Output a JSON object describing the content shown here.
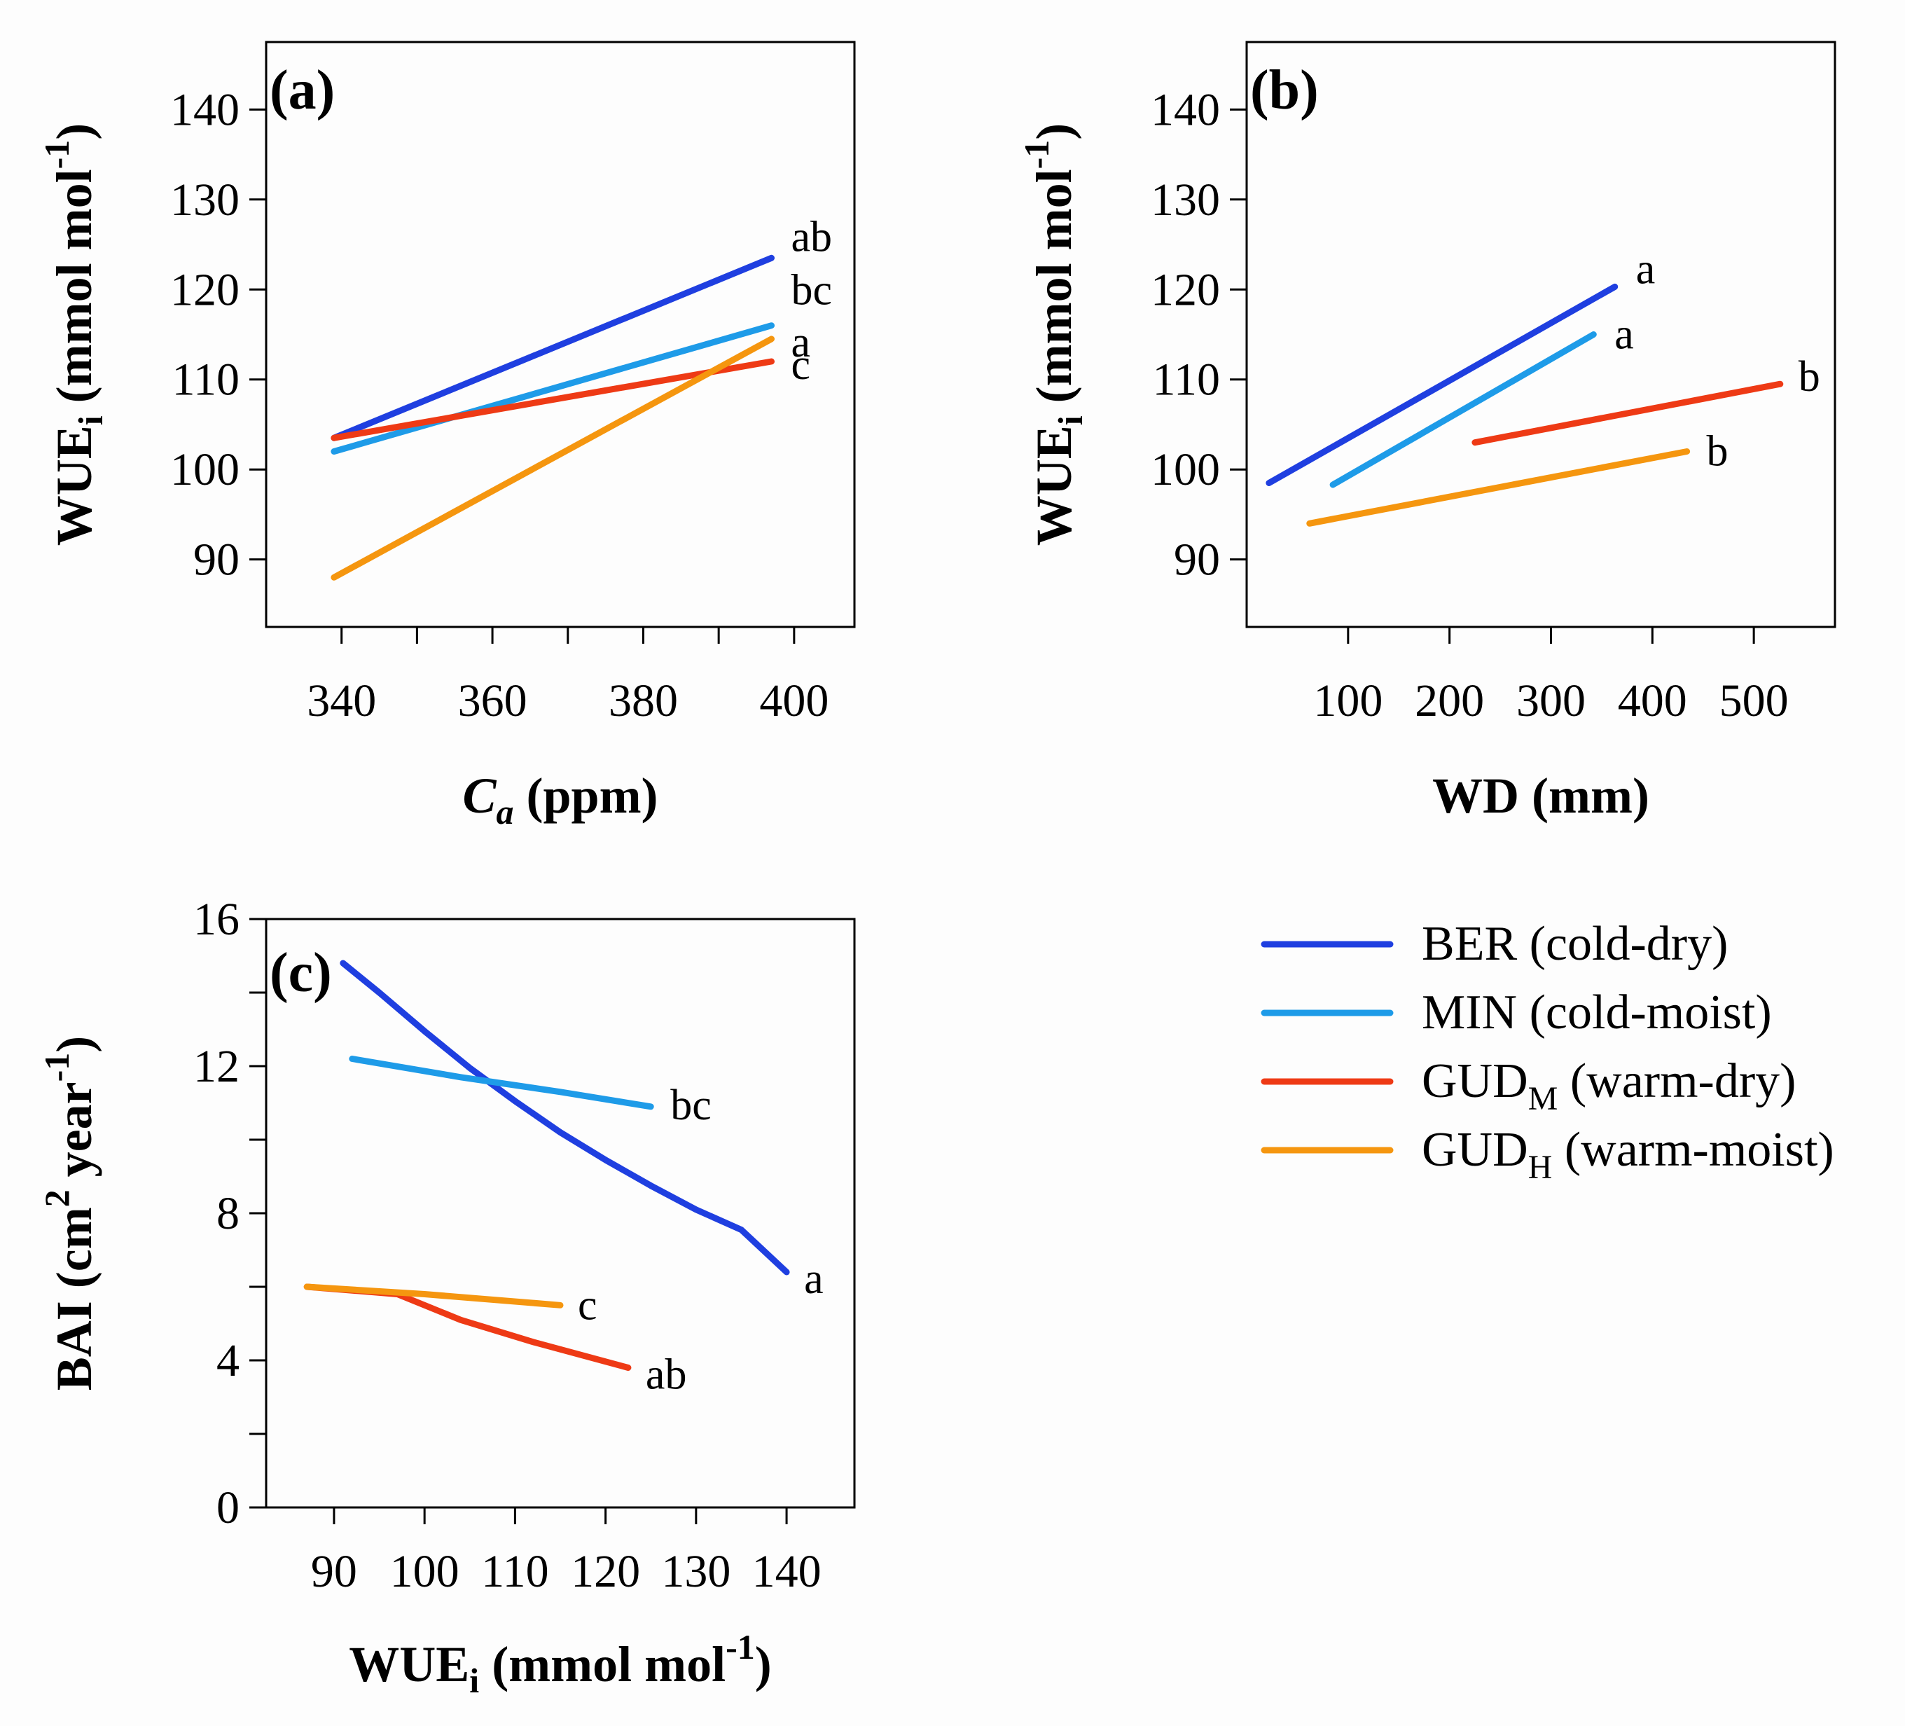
{
  "legend": [
    {
      "name": "BER (cold-dry)",
      "base": "BER",
      "sub": "",
      "rest": " (cold-dry)",
      "color": "#1f3fe0"
    },
    {
      "name": "MIN (cold-moist)",
      "base": "MIN",
      "sub": "",
      "rest": " (cold-moist)",
      "color": "#1e9be8"
    },
    {
      "name": "GUDM (warm-dry)",
      "base": "GUD",
      "sub": "M",
      "rest": " (warm-dry)",
      "color": "#ee3a15"
    },
    {
      "name": "GUDH (warm-moist)",
      "base": "GUD",
      "sub": "H",
      "rest": " (warm-moist)",
      "color": "#f5960f"
    }
  ],
  "chart_data": [
    {
      "panel": "(a)",
      "type": "line",
      "xlabel": {
        "base": "C",
        "sub": "a",
        "rest": " (ppm)"
      },
      "ylabel": {
        "base": "WUE",
        "sub": "i",
        "rest": " (mmol mol",
        "sup": "-1",
        "close": ")"
      },
      "xlim": [
        330,
        408
      ],
      "ylim": [
        82.5,
        147.5
      ],
      "xticks": [
        340,
        360,
        380,
        400
      ],
      "xminor": [
        350,
        370,
        390
      ],
      "yticks": [
        90,
        100,
        110,
        120,
        130,
        140
      ],
      "series": [
        {
          "name": "BER (cold-dry)",
          "x": [
            339,
            397
          ],
          "y": [
            103.5,
            123.5
          ],
          "label": "ab"
        },
        {
          "name": "MIN (cold-moist)",
          "x": [
            339,
            397
          ],
          "y": [
            102,
            116
          ],
          "label": "bc"
        },
        {
          "name": "GUDM (warm-dry)",
          "x": [
            339,
            397
          ],
          "y": [
            103.5,
            112
          ],
          "label": "c"
        },
        {
          "name": "GUDH (warm-moist)",
          "x": [
            339,
            397
          ],
          "y": [
            88,
            114.5
          ],
          "label": "a"
        }
      ]
    },
    {
      "panel": "(b)",
      "type": "line",
      "xlabel": {
        "base": "WD (mm)",
        "sub": "",
        "rest": ""
      },
      "ylabel": {
        "base": "WUE",
        "sub": "i",
        "rest": " (mmol mol",
        "sup": "-1",
        "close": ")"
      },
      "xlim": [
        0,
        580
      ],
      "ylim": [
        82.5,
        147.5
      ],
      "xticks": [
        100,
        200,
        300,
        400,
        500
      ],
      "xminor": [],
      "yticks": [
        90,
        100,
        110,
        120,
        130,
        140
      ],
      "series": [
        {
          "name": "BER (cold-dry)",
          "x": [
            22,
            363
          ],
          "y": [
            98.5,
            120.3
          ],
          "label": "a"
        },
        {
          "name": "MIN (cold-moist)",
          "x": [
            85,
            342
          ],
          "y": [
            98.3,
            115
          ],
          "label": "a"
        },
        {
          "name": "GUDM (warm-dry)",
          "x": [
            225,
            526
          ],
          "y": [
            103,
            109.5
          ],
          "label": "b"
        },
        {
          "name": "GUDH (warm-moist)",
          "x": [
            62,
            434
          ],
          "y": [
            94,
            102
          ],
          "label": "b"
        }
      ]
    },
    {
      "panel": "(c)",
      "type": "line",
      "xlabel": {
        "base": "WUE",
        "sub": "i",
        "rest": " (mmol mol",
        "sup": "-1",
        "close": ")"
      },
      "ylabel": {
        "base": "BAI (cm",
        "sup2": "2",
        "mid": " year",
        "sup": "-1",
        "close": ")"
      },
      "xlim": [
        82.5,
        147.5
      ],
      "ylim": [
        0,
        16
      ],
      "xticks": [
        90,
        100,
        110,
        120,
        130,
        140
      ],
      "xminor": [],
      "yticks": [
        0,
        4,
        8,
        12,
        16
      ],
      "yminor": [
        2,
        6,
        10,
        14
      ],
      "series": [
        {
          "name": "BER (cold-dry)",
          "x": [
            91,
            95,
            100,
            105,
            110,
            115,
            120,
            125,
            130,
            135,
            140
          ],
          "y": [
            14.8,
            14.0,
            12.95,
            11.95,
            11.05,
            10.2,
            9.45,
            8.75,
            8.1,
            7.55,
            6.4
          ],
          "label": "a"
        },
        {
          "name": "MIN (cold-moist)",
          "x": [
            92,
            104,
            115,
            125
          ],
          "y": [
            12.2,
            11.7,
            11.3,
            10.9
          ],
          "label": "bc"
        },
        {
          "name": "GUDM (warm-dry)",
          "x": [
            87,
            97,
            104,
            112,
            122.5
          ],
          "y": [
            6.0,
            5.8,
            5.1,
            4.5,
            3.8
          ],
          "label": "ab"
        },
        {
          "name": "GUDH (warm-moist)",
          "x": [
            87,
            100,
            115
          ],
          "y": [
            6.0,
            5.8,
            5.5
          ],
          "label": "c"
        }
      ]
    }
  ]
}
